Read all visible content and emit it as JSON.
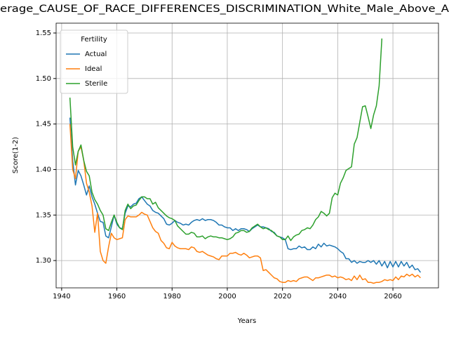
{
  "chart_data": {
    "type": "line",
    "title": "erage_CAUSE_OF_RACE_DIFFERENCES_DISCRIMINATION_White_Male_Above_A",
    "xlabel": "Years",
    "ylabel": "Score(1-2)",
    "legend_title": "Fertility",
    "legend": "upper left",
    "grid": true,
    "xlim": [
      1938,
      2076.5
    ],
    "xticks": [
      1940,
      1960,
      1980,
      2000,
      2020,
      2040,
      2060
    ],
    "ylim": [
      1.27,
      1.5608
    ],
    "yticks": [
      {
        "value": 1.3,
        "label": "1.30"
      },
      1.35,
      {
        "value": 1.4,
        "label": "1.40"
      },
      1.45,
      {
        "value": 1.5,
        "label": "1.50"
      },
      1.55
    ],
    "x": [
      1943,
      1944,
      1945,
      1946,
      1947,
      1948,
      1949,
      1950,
      1951,
      1952,
      1953,
      1954,
      1955,
      1956,
      1957,
      1958,
      1959,
      1960,
      1961,
      1962,
      1963,
      1964,
      1965,
      1966,
      1967,
      1968,
      1969,
      1970,
      1971,
      1972,
      1973,
      1974,
      1975,
      1976,
      1977,
      1978,
      1979,
      1980,
      1981,
      1982,
      1983,
      1984,
      1985,
      1986,
      1987,
      1988,
      1989,
      1990,
      1991,
      1992,
      1993,
      1994,
      1995,
      1996,
      1997,
      1998,
      1999,
      2000,
      2001,
      2002,
      2003,
      2004,
      2005,
      2006,
      2007,
      2008,
      2009,
      2010,
      2011,
      2012,
      2013,
      2014,
      2015,
      2016,
      2017,
      2018,
      2019,
      2020,
      2021,
      2022,
      2023,
      2024,
      2025,
      2026,
      2027,
      2028,
      2029,
      2030,
      2031,
      2032,
      2033,
      2034,
      2035,
      2036,
      2037,
      2038,
      2039,
      2040,
      2041,
      2042,
      2043,
      2044,
      2045,
      2046,
      2047,
      2048,
      2049,
      2050,
      2051,
      2052,
      2053,
      2054,
      2055,
      2056,
      2057,
      2058,
      2059,
      2060,
      2061,
      2062,
      2063,
      2064,
      2065,
      2066,
      2067,
      2068,
      2069,
      2070
    ],
    "series": [
      {
        "name": "Actual",
        "color": "#1f77b4",
        "values": [
          1.457,
          1.41,
          1.383,
          1.399,
          1.393,
          1.383,
          1.372,
          1.382,
          1.37,
          1.362,
          1.352,
          1.343,
          1.342,
          1.327,
          1.325,
          1.337,
          1.35,
          1.34,
          1.336,
          1.335,
          1.352,
          1.36,
          1.359,
          1.362,
          1.363,
          1.368,
          1.37,
          1.366,
          1.362,
          1.36,
          1.355,
          1.353,
          1.352,
          1.349,
          1.346,
          1.34,
          1.339,
          1.341,
          1.344,
          1.342,
          1.341,
          1.339,
          1.34,
          1.339,
          1.342,
          1.344,
          1.345,
          1.344,
          1.346,
          1.344,
          1.345,
          1.345,
          1.344,
          1.342,
          1.339,
          1.339,
          1.337,
          1.336,
          1.336,
          1.333,
          1.335,
          1.333,
          1.335,
          1.335,
          1.334,
          1.332,
          1.335,
          1.337,
          1.339,
          1.337,
          1.337,
          1.336,
          1.335,
          1.332,
          1.331,
          1.327,
          1.326,
          1.325,
          1.323,
          1.313,
          1.312,
          1.313,
          1.313,
          1.316,
          1.314,
          1.315,
          1.312,
          1.312,
          1.315,
          1.313,
          1.318,
          1.315,
          1.319,
          1.316,
          1.317,
          1.316,
          1.315,
          1.313,
          1.31,
          1.308,
          1.302,
          1.302,
          1.298,
          1.3,
          1.297,
          1.299,
          1.298,
          1.298,
          1.3,
          1.298,
          1.3,
          1.296,
          1.3,
          1.294,
          1.299,
          1.292,
          1.299,
          1.293,
          1.299,
          1.293,
          1.299,
          1.294,
          1.298,
          1.292,
          1.295,
          1.29,
          1.291,
          1.287
        ]
      },
      {
        "name": "Ideal",
        "color": "#ff7f0e",
        "values": [
          1.45,
          1.4,
          1.39,
          1.42,
          1.425,
          1.41,
          1.385,
          1.375,
          1.36,
          1.331,
          1.352,
          1.31,
          1.3,
          1.297,
          1.315,
          1.33,
          1.325,
          1.323,
          1.324,
          1.325,
          1.345,
          1.349,
          1.348,
          1.348,
          1.348,
          1.35,
          1.353,
          1.351,
          1.35,
          1.343,
          1.336,
          1.332,
          1.33,
          1.322,
          1.319,
          1.314,
          1.313,
          1.32,
          1.316,
          1.314,
          1.313,
          1.313,
          1.313,
          1.312,
          1.315,
          1.314,
          1.31,
          1.309,
          1.31,
          1.308,
          1.306,
          1.305,
          1.304,
          1.302,
          1.301,
          1.305,
          1.305,
          1.305,
          1.308,
          1.308,
          1.309,
          1.307,
          1.306,
          1.308,
          1.306,
          1.303,
          1.304,
          1.305,
          1.305,
          1.303,
          1.289,
          1.29,
          1.287,
          1.284,
          1.281,
          1.28,
          1.277,
          1.276,
          1.276,
          1.278,
          1.277,
          1.278,
          1.277,
          1.28,
          1.281,
          1.282,
          1.282,
          1.28,
          1.278,
          1.281,
          1.281,
          1.282,
          1.283,
          1.284,
          1.284,
          1.282,
          1.283,
          1.281,
          1.282,
          1.281,
          1.279,
          1.28,
          1.278,
          1.283,
          1.279,
          1.284,
          1.279,
          1.28,
          1.276,
          1.276,
          1.275,
          1.276,
          1.276,
          1.277,
          1.279,
          1.278,
          1.279,
          1.278,
          1.282,
          1.279,
          1.283,
          1.282,
          1.285,
          1.283,
          1.285,
          1.282,
          1.284,
          1.281
        ]
      },
      {
        "name": "Sterile",
        "color": "#2ca02c",
        "values": [
          1.479,
          1.425,
          1.405,
          1.42,
          1.427,
          1.41,
          1.398,
          1.393,
          1.375,
          1.367,
          1.362,
          1.355,
          1.35,
          1.335,
          1.333,
          1.342,
          1.35,
          1.342,
          1.336,
          1.334,
          1.355,
          1.362,
          1.357,
          1.36,
          1.361,
          1.366,
          1.37,
          1.37,
          1.368,
          1.368,
          1.362,
          1.364,
          1.358,
          1.355,
          1.352,
          1.349,
          1.347,
          1.346,
          1.344,
          1.338,
          1.335,
          1.332,
          1.329,
          1.329,
          1.331,
          1.33,
          1.326,
          1.326,
          1.327,
          1.324,
          1.326,
          1.327,
          1.326,
          1.326,
          1.325,
          1.325,
          1.324,
          1.323,
          1.324,
          1.326,
          1.33,
          1.331,
          1.333,
          1.333,
          1.331,
          1.332,
          1.336,
          1.338,
          1.34,
          1.337,
          1.335,
          1.336,
          1.334,
          1.333,
          1.33,
          1.327,
          1.326,
          1.323,
          1.323,
          1.327,
          1.322,
          1.326,
          1.328,
          1.329,
          1.333,
          1.334,
          1.336,
          1.335,
          1.339,
          1.345,
          1.348,
          1.354,
          1.352,
          1.349,
          1.352,
          1.369,
          1.374,
          1.372,
          1.385,
          1.391,
          1.399,
          1.401,
          1.403,
          1.428,
          1.435,
          1.452,
          1.469,
          1.47,
          1.458,
          1.445,
          1.46,
          1.47,
          1.492,
          1.544,
          null,
          null,
          null,
          null,
          null,
          null,
          null,
          null,
          null,
          null,
          null,
          null,
          null,
          null
        ]
      }
    ]
  }
}
